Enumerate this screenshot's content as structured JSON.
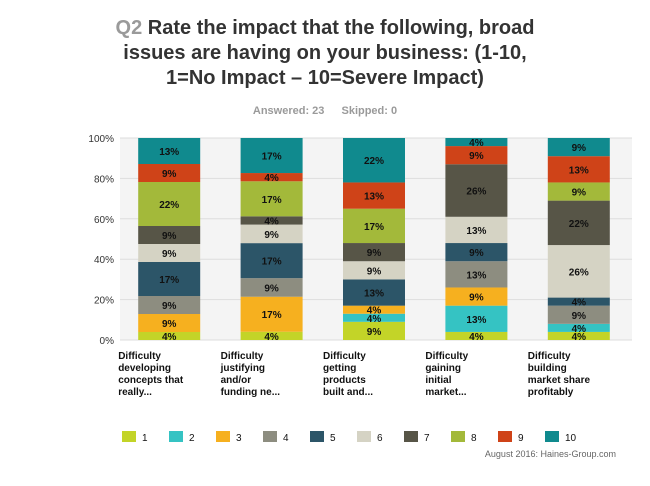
{
  "header": {
    "question_number": "Q2",
    "title_line1": "Rate the impact that the following, broad",
    "title_line2": "issues are having on your business: (1-10,",
    "title_line3": "1=No Impact – 10=Severe Impact)",
    "answered": "Answered: 23",
    "skipped": "Skipped: 0"
  },
  "footer": {
    "credit": "August 2016: Haines-Group.com"
  },
  "chart_data": {
    "type": "bar",
    "stacked": true,
    "orientation": "vertical",
    "ylim": [
      0,
      100
    ],
    "y_ticks": [
      "0%",
      "20%",
      "40%",
      "60%",
      "80%",
      "100%"
    ],
    "grid": true,
    "legend_position": "bottom",
    "categories": [
      [
        "Difficulty",
        "developing",
        "concepts that",
        "really..."
      ],
      [
        "Difficulty",
        "justifying",
        "and/or",
        "funding ne..."
      ],
      [
        "Difficulty",
        "getting",
        "products",
        "built and..."
      ],
      [
        "Difficulty",
        "gaining",
        "initial",
        "market..."
      ],
      [
        "Difficulty",
        "building",
        "market share",
        "profitably"
      ]
    ],
    "series": [
      {
        "name": "1",
        "color": "#c3d428",
        "values": [
          4,
          4,
          9,
          4,
          4
        ],
        "labels": [
          "4%",
          "4%",
          "9%",
          "4%",
          "4%"
        ]
      },
      {
        "name": "2",
        "color": "#35c3c3",
        "values": [
          0,
          0,
          4,
          13,
          4
        ],
        "labels": [
          "",
          "",
          "4%",
          "13%",
          "4%"
        ]
      },
      {
        "name": "3",
        "color": "#f6b01f",
        "values": [
          9,
          17,
          4,
          9,
          0
        ],
        "labels": [
          "9%",
          "17%",
          "4%",
          "9%",
          ""
        ]
      },
      {
        "name": "4",
        "color": "#8d8d80",
        "values": [
          9,
          9,
          0,
          13,
          9
        ],
        "labels": [
          "9%",
          "9%",
          "",
          "13%",
          "9%"
        ]
      },
      {
        "name": "5",
        "color": "#2c5568",
        "values": [
          17,
          17,
          13,
          9,
          4
        ],
        "labels": [
          "17%",
          "17%",
          "13%",
          "9%",
          "4%"
        ]
      },
      {
        "name": "6",
        "color": "#d5d3c4",
        "values": [
          9,
          9,
          9,
          13,
          26
        ],
        "labels": [
          "9%",
          "9%",
          "9%",
          "13%",
          "26%"
        ]
      },
      {
        "name": "7",
        "color": "#575547",
        "values": [
          9,
          4,
          9,
          26,
          22
        ],
        "labels": [
          "9%",
          "4%",
          "9%",
          "26%",
          "22%"
        ]
      },
      {
        "name": "8",
        "color": "#a3b93a",
        "values": [
          22,
          17,
          17,
          0,
          9
        ],
        "labels": [
          "22%",
          "17%",
          "17%",
          "",
          "9%"
        ]
      },
      {
        "name": "9",
        "color": "#cf4318",
        "values": [
          9,
          4,
          13,
          9,
          13
        ],
        "labels": [
          "9%",
          "4%",
          "13%",
          "9%",
          "13%"
        ]
      },
      {
        "name": "10",
        "color": "#108a8e",
        "values": [
          13,
          17,
          22,
          4,
          9
        ],
        "labels": [
          "13%",
          "17%",
          "22%",
          "4%",
          "9%"
        ]
      }
    ]
  }
}
